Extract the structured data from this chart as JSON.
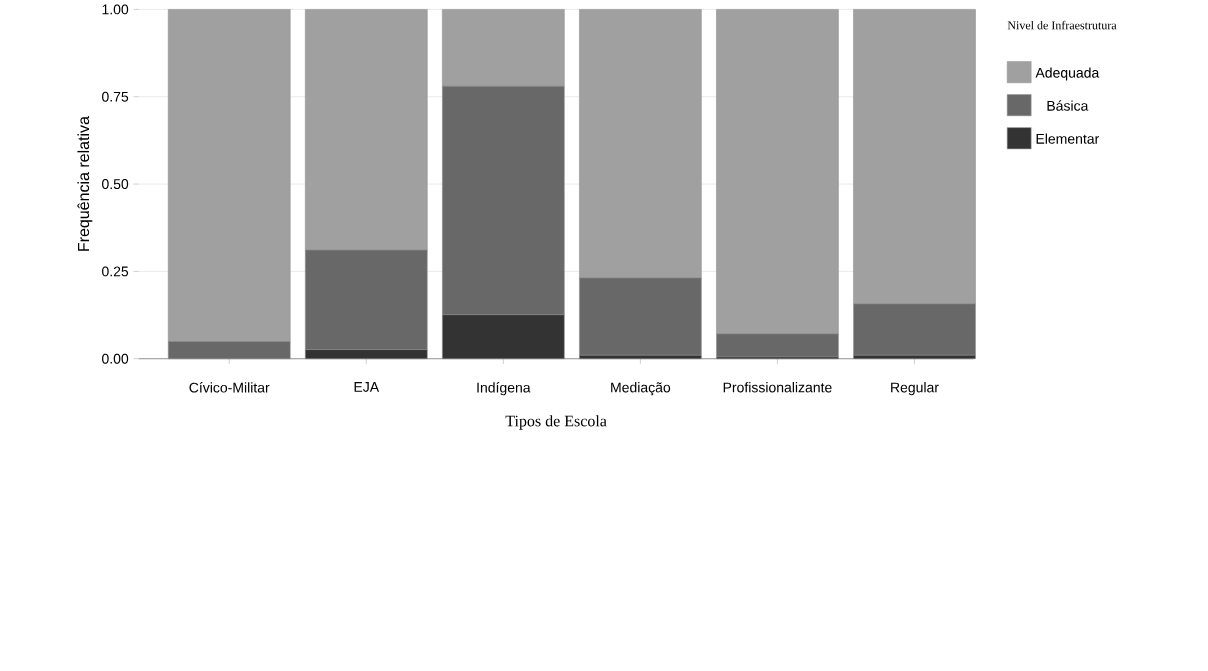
{
  "chart_data": {
    "type": "bar",
    "stacked": true,
    "categories": [
      "Cívico-Militar",
      "EJA",
      "Indígena",
      "Mediação",
      "Profissionalizante",
      "Regular"
    ],
    "series": [
      {
        "name": "Elementar",
        "color": "#333333",
        "values": [
          0,
          0.026,
          0.126,
          0.01,
          0.005,
          0.01
        ]
      },
      {
        "name": "Básica",
        "color": "#686868",
        "values": [
          0.049,
          0.285,
          0.654,
          0.221,
          0.066,
          0.147
        ]
      },
      {
        "name": "Adequada",
        "color": "#a0a0a0",
        "values": [
          0.951,
          0.689,
          0.22,
          0.769,
          0.929,
          0.843
        ]
      }
    ],
    "xlabel": "Tipos de Escola",
    "ylabel": "Frequência relativa",
    "legend_title": "Nivel de Infraestrutura",
    "ylim": [
      0,
      1
    ],
    "yticks": [
      {
        "value": 0,
        "label": "0.00"
      },
      {
        "value": 0.25,
        "label": "0.25"
      },
      {
        "value": 0.5,
        "label": "0.50"
      },
      {
        "value": 0.75,
        "label": "0.75"
      },
      {
        "value": 1,
        "label": "1.00"
      }
    ],
    "grid": "y",
    "legend": "right"
  }
}
